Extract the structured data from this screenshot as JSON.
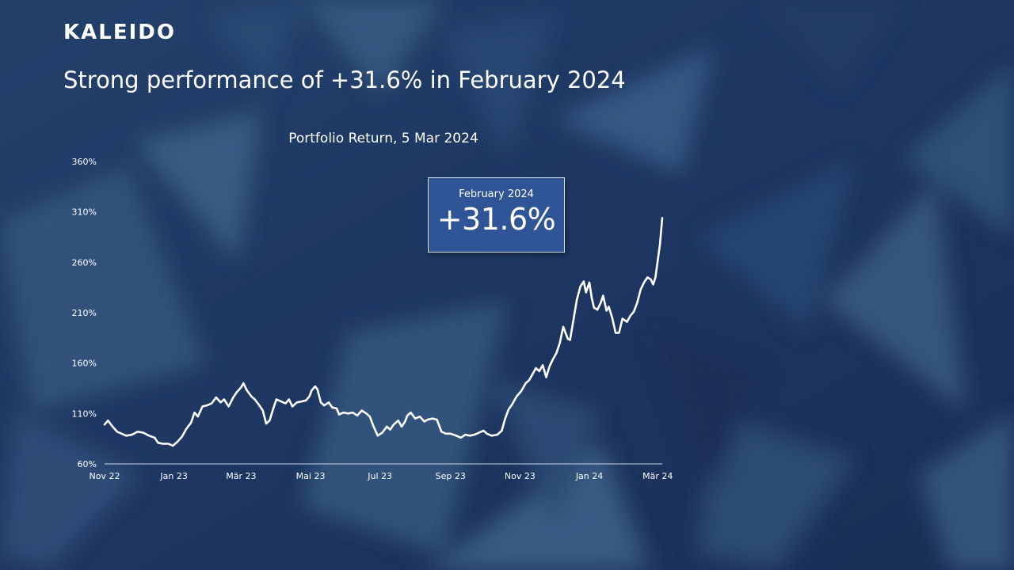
{
  "brand": {
    "logo_text": "KALEIDO"
  },
  "slide": {
    "headline": "Strong performance of +31.6% in February 2024"
  },
  "callout": {
    "label": "February 2024",
    "value": "+31.6%"
  },
  "colors": {
    "background": "#1c3560",
    "line": "#ffffff",
    "callout_fill": "#2f5597"
  },
  "chart_data": {
    "type": "line",
    "title": "Portfolio Return, 5 Mar 2024",
    "xlabel": "",
    "ylabel": "",
    "ylim": [
      60,
      360
    ],
    "y_ticks": [
      60,
      110,
      160,
      210,
      260,
      310,
      360
    ],
    "y_tick_labels": [
      "60%",
      "110%",
      "160%",
      "210%",
      "260%",
      "310%",
      "360%"
    ],
    "x_range": [
      "2022-11-01",
      "2024-03-05"
    ],
    "x_ticks": [
      "2022-11-01",
      "2023-01-01",
      "2023-03-01",
      "2023-05-01",
      "2023-07-01",
      "2023-09-01",
      "2023-11-01",
      "2024-01-01",
      "2024-03-01"
    ],
    "x_tick_labels": [
      "Nov 22",
      "Jan 23",
      "Mär 23",
      "Mai 23",
      "Jul 23",
      "Sep 23",
      "Nov 23",
      "Jan 24",
      "Mär 24"
    ],
    "grid": false,
    "legend": "none",
    "series": [
      {
        "values_unit": "percent",
        "points": [
          [
            "2022-11-01",
            99
          ],
          [
            "2022-11-04",
            103
          ],
          [
            "2022-11-08",
            97
          ],
          [
            "2022-11-12",
            92
          ],
          [
            "2022-11-16",
            90
          ],
          [
            "2022-11-20",
            88
          ],
          [
            "2022-11-25",
            89
          ],
          [
            "2022-11-30",
            92
          ],
          [
            "2022-12-05",
            91
          ],
          [
            "2022-12-10",
            88
          ],
          [
            "2022-12-15",
            86
          ],
          [
            "2022-12-18",
            81
          ],
          [
            "2022-12-22",
            80
          ],
          [
            "2022-12-27",
            80
          ],
          [
            "2022-12-31",
            78
          ],
          [
            "2023-01-04",
            82
          ],
          [
            "2023-01-08",
            87
          ],
          [
            "2023-01-12",
            95
          ],
          [
            "2023-01-16",
            101
          ],
          [
            "2023-01-19",
            111
          ],
          [
            "2023-01-22",
            107
          ],
          [
            "2023-01-26",
            117
          ],
          [
            "2023-01-30",
            118
          ],
          [
            "2023-02-03",
            120
          ],
          [
            "2023-02-07",
            126
          ],
          [
            "2023-02-11",
            121
          ],
          [
            "2023-02-14",
            124
          ],
          [
            "2023-02-18",
            117
          ],
          [
            "2023-02-22",
            126
          ],
          [
            "2023-02-25",
            131
          ],
          [
            "2023-03-01",
            136
          ],
          [
            "2023-03-03",
            140
          ],
          [
            "2023-03-06",
            133
          ],
          [
            "2023-03-10",
            127
          ],
          [
            "2023-03-13",
            124
          ],
          [
            "2023-03-17",
            118
          ],
          [
            "2023-03-20",
            113
          ],
          [
            "2023-03-23",
            100
          ],
          [
            "2023-03-26",
            103
          ],
          [
            "2023-03-29",
            114
          ],
          [
            "2023-04-01",
            124
          ],
          [
            "2023-04-05",
            122
          ],
          [
            "2023-04-09",
            120
          ],
          [
            "2023-04-12",
            124
          ],
          [
            "2023-04-15",
            117
          ],
          [
            "2023-04-19",
            121
          ],
          [
            "2023-04-23",
            122
          ],
          [
            "2023-04-27",
            123
          ],
          [
            "2023-04-30",
            127
          ],
          [
            "2023-05-02",
            133
          ],
          [
            "2023-05-05",
            137
          ],
          [
            "2023-05-07",
            134
          ],
          [
            "2023-05-10",
            121
          ],
          [
            "2023-05-13",
            118
          ],
          [
            "2023-05-17",
            121
          ],
          [
            "2023-05-20",
            116
          ],
          [
            "2023-05-24",
            115
          ],
          [
            "2023-05-26",
            109
          ],
          [
            "2023-05-30",
            111
          ],
          [
            "2023-06-03",
            110
          ],
          [
            "2023-06-07",
            111
          ],
          [
            "2023-06-11",
            108
          ],
          [
            "2023-06-15",
            113
          ],
          [
            "2023-06-19",
            110
          ],
          [
            "2023-06-22",
            107
          ],
          [
            "2023-06-25",
            98
          ],
          [
            "2023-06-29",
            88
          ],
          [
            "2023-07-03",
            91
          ],
          [
            "2023-07-07",
            97
          ],
          [
            "2023-07-10",
            94
          ],
          [
            "2023-07-13",
            99
          ],
          [
            "2023-07-17",
            103
          ],
          [
            "2023-07-20",
            97
          ],
          [
            "2023-07-23",
            102
          ],
          [
            "2023-07-25",
            108
          ],
          [
            "2023-07-28",
            111
          ],
          [
            "2023-08-01",
            105
          ],
          [
            "2023-08-05",
            107
          ],
          [
            "2023-08-09",
            102
          ],
          [
            "2023-08-12",
            104
          ],
          [
            "2023-08-16",
            105
          ],
          [
            "2023-08-20",
            104
          ],
          [
            "2023-08-24",
            92
          ],
          [
            "2023-08-28",
            90
          ],
          [
            "2023-09-01",
            90
          ],
          [
            "2023-09-06",
            88
          ],
          [
            "2023-09-10",
            86
          ],
          [
            "2023-09-14",
            89
          ],
          [
            "2023-09-18",
            88
          ],
          [
            "2023-09-22",
            89
          ],
          [
            "2023-09-26",
            91
          ],
          [
            "2023-09-30",
            93
          ],
          [
            "2023-10-03",
            90
          ],
          [
            "2023-10-07",
            88
          ],
          [
            "2023-10-12",
            89
          ],
          [
            "2023-10-16",
            93
          ],
          [
            "2023-10-19",
            105
          ],
          [
            "2023-10-22",
            114
          ],
          [
            "2023-10-25",
            119
          ],
          [
            "2023-10-29",
            127
          ],
          [
            "2023-11-02",
            132
          ],
          [
            "2023-11-06",
            140
          ],
          [
            "2023-11-09",
            143
          ],
          [
            "2023-11-12",
            149
          ],
          [
            "2023-11-15",
            155
          ],
          [
            "2023-11-18",
            152
          ],
          [
            "2023-11-21",
            158
          ],
          [
            "2023-11-24",
            146
          ],
          [
            "2023-11-27",
            157
          ],
          [
            "2023-11-30",
            164
          ],
          [
            "2023-12-03",
            170
          ],
          [
            "2023-12-06",
            180
          ],
          [
            "2023-12-09",
            196
          ],
          [
            "2023-12-11",
            190
          ],
          [
            "2023-12-13",
            184
          ],
          [
            "2023-12-15",
            183
          ],
          [
            "2023-12-18",
            203
          ],
          [
            "2023-12-21",
            223
          ],
          [
            "2023-12-24",
            236
          ],
          [
            "2023-12-27",
            241
          ],
          [
            "2023-12-29",
            230
          ],
          [
            "2024-01-01",
            240
          ],
          [
            "2024-01-03",
            225
          ],
          [
            "2024-01-05",
            215
          ],
          [
            "2024-01-08",
            213
          ],
          [
            "2024-01-11",
            220
          ],
          [
            "2024-01-13",
            227
          ],
          [
            "2024-01-16",
            212
          ],
          [
            "2024-01-18",
            216
          ],
          [
            "2024-01-21",
            205
          ],
          [
            "2024-01-24",
            190
          ],
          [
            "2024-01-27",
            190
          ],
          [
            "2024-01-30",
            204
          ],
          [
            "2024-02-03",
            201
          ],
          [
            "2024-02-06",
            207
          ],
          [
            "2024-02-09",
            211
          ],
          [
            "2024-02-12",
            220
          ],
          [
            "2024-02-15",
            233
          ],
          [
            "2024-02-18",
            240
          ],
          [
            "2024-02-21",
            245
          ],
          [
            "2024-02-24",
            243
          ],
          [
            "2024-02-26",
            238
          ],
          [
            "2024-02-28",
            245
          ],
          [
            "2024-03-01",
            262
          ],
          [
            "2024-03-03",
            278
          ],
          [
            "2024-03-05",
            304
          ]
        ]
      }
    ]
  }
}
